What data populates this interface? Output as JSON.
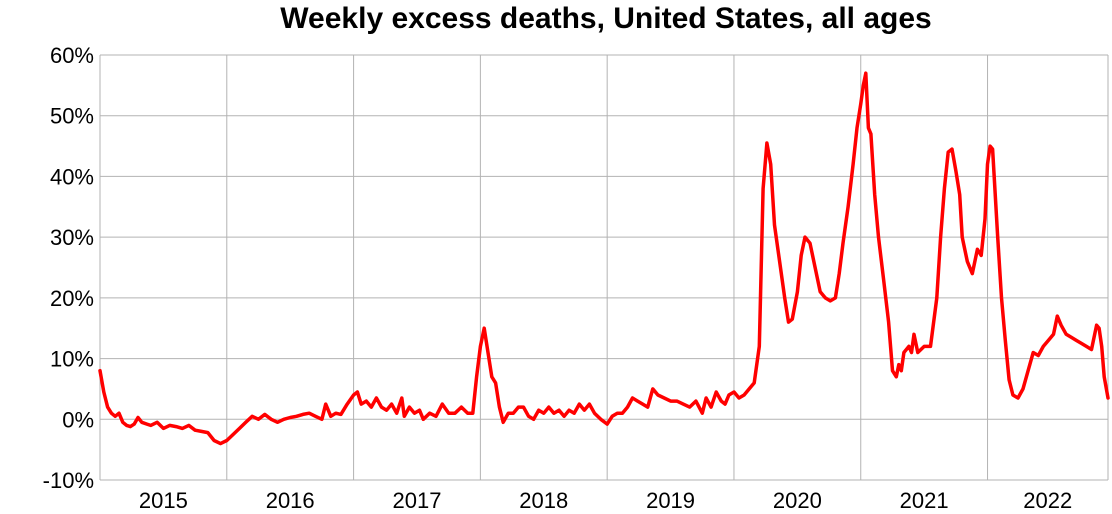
{
  "chart_data": {
    "type": "line",
    "title": "Weekly excess deaths, United States, all ages",
    "xlabel": "",
    "ylabel": "",
    "ylim": [
      -10,
      60
    ],
    "xlim": [
      2015.0,
      2022.95
    ],
    "y_tick_labels": [
      "-10%",
      "0%",
      "10%",
      "20%",
      "30%",
      "40%",
      "50%",
      "60%"
    ],
    "y_ticks": [
      -10,
      0,
      10,
      20,
      30,
      40,
      50,
      60
    ],
    "x_tick_labels": [
      "2015",
      "2016",
      "2017",
      "2018",
      "2019",
      "2020",
      "2021",
      "2022"
    ],
    "x_gridlines": [
      2016,
      2017,
      2018,
      2019,
      2020,
      2021,
      2022
    ],
    "grid": true,
    "line_color": "#ff0000",
    "series": [
      {
        "values": [
          [
            2015.0,
            8.0
          ],
          [
            2015.03,
            4.5
          ],
          [
            2015.06,
            2.0
          ],
          [
            2015.09,
            1.0
          ],
          [
            2015.12,
            0.5
          ],
          [
            2015.15,
            1.0
          ],
          [
            2015.18,
            -0.5
          ],
          [
            2015.21,
            -1.0
          ],
          [
            2015.24,
            -1.2
          ],
          [
            2015.27,
            -0.8
          ],
          [
            2015.3,
            0.3
          ],
          [
            2015.33,
            -0.5
          ],
          [
            2015.37,
            -0.8
          ],
          [
            2015.4,
            -1.0
          ],
          [
            2015.45,
            -0.5
          ],
          [
            2015.5,
            -1.5
          ],
          [
            2015.55,
            -1.0
          ],
          [
            2015.6,
            -1.2
          ],
          [
            2015.65,
            -1.5
          ],
          [
            2015.7,
            -1.0
          ],
          [
            2015.75,
            -1.8
          ],
          [
            2015.8,
            -2.0
          ],
          [
            2015.85,
            -2.2
          ],
          [
            2015.9,
            -3.5
          ],
          [
            2015.95,
            -4.0
          ],
          [
            2016.0,
            -3.5
          ],
          [
            2016.05,
            -2.5
          ],
          [
            2016.1,
            -1.5
          ],
          [
            2016.15,
            -0.5
          ],
          [
            2016.2,
            0.5
          ],
          [
            2016.25,
            0.0
          ],
          [
            2016.3,
            0.8
          ],
          [
            2016.35,
            0.0
          ],
          [
            2016.4,
            -0.5
          ],
          [
            2016.45,
            0.0
          ],
          [
            2016.5,
            0.3
          ],
          [
            2016.55,
            0.5
          ],
          [
            2016.6,
            0.8
          ],
          [
            2016.65,
            1.0
          ],
          [
            2016.7,
            0.5
          ],
          [
            2016.75,
            0.0
          ],
          [
            2016.78,
            2.5
          ],
          [
            2016.82,
            0.5
          ],
          [
            2016.86,
            1.0
          ],
          [
            2016.9,
            0.8
          ],
          [
            2016.95,
            2.5
          ],
          [
            2017.0,
            4.0
          ],
          [
            2017.03,
            4.5
          ],
          [
            2017.06,
            2.5
          ],
          [
            2017.1,
            3.0
          ],
          [
            2017.14,
            2.0
          ],
          [
            2017.18,
            3.5
          ],
          [
            2017.22,
            2.0
          ],
          [
            2017.26,
            1.5
          ],
          [
            2017.3,
            2.5
          ],
          [
            2017.34,
            1.0
          ],
          [
            2017.38,
            3.5
          ],
          [
            2017.4,
            0.5
          ],
          [
            2017.44,
            2.0
          ],
          [
            2017.48,
            1.0
          ],
          [
            2017.52,
            1.5
          ],
          [
            2017.55,
            0.0
          ],
          [
            2017.6,
            1.0
          ],
          [
            2017.65,
            0.5
          ],
          [
            2017.7,
            2.5
          ],
          [
            2017.75,
            1.0
          ],
          [
            2017.8,
            1.0
          ],
          [
            2017.85,
            2.0
          ],
          [
            2017.9,
            1.0
          ],
          [
            2017.94,
            1.0
          ],
          [
            2017.97,
            7.0
          ],
          [
            2018.0,
            12.0
          ],
          [
            2018.03,
            15.0
          ],
          [
            2018.06,
            11.0
          ],
          [
            2018.09,
            7.0
          ],
          [
            2018.12,
            6.0
          ],
          [
            2018.15,
            2.0
          ],
          [
            2018.18,
            -0.5
          ],
          [
            2018.22,
            1.0
          ],
          [
            2018.26,
            1.0
          ],
          [
            2018.3,
            2.0
          ],
          [
            2018.34,
            2.0
          ],
          [
            2018.38,
            0.5
          ],
          [
            2018.42,
            0.0
          ],
          [
            2018.46,
            1.5
          ],
          [
            2018.5,
            1.0
          ],
          [
            2018.54,
            2.0
          ],
          [
            2018.58,
            1.0
          ],
          [
            2018.62,
            1.5
          ],
          [
            2018.66,
            0.5
          ],
          [
            2018.7,
            1.5
          ],
          [
            2018.74,
            1.0
          ],
          [
            2018.78,
            2.5
          ],
          [
            2018.82,
            1.5
          ],
          [
            2018.86,
            2.5
          ],
          [
            2018.9,
            1.0
          ],
          [
            2018.95,
            0.0
          ],
          [
            2019.0,
            -0.8
          ],
          [
            2019.04,
            0.5
          ],
          [
            2019.08,
            1.0
          ],
          [
            2019.12,
            1.0
          ],
          [
            2019.16,
            2.0
          ],
          [
            2019.2,
            3.5
          ],
          [
            2019.24,
            3.0
          ],
          [
            2019.28,
            2.5
          ],
          [
            2019.32,
            2.0
          ],
          [
            2019.36,
            5.0
          ],
          [
            2019.4,
            4.0
          ],
          [
            2019.45,
            3.5
          ],
          [
            2019.5,
            3.0
          ],
          [
            2019.55,
            3.0
          ],
          [
            2019.6,
            2.5
          ],
          [
            2019.65,
            2.0
          ],
          [
            2019.7,
            3.0
          ],
          [
            2019.75,
            1.0
          ],
          [
            2019.78,
            3.5
          ],
          [
            2019.82,
            2.0
          ],
          [
            2019.86,
            4.5
          ],
          [
            2019.9,
            3.0
          ],
          [
            2019.93,
            2.5
          ],
          [
            2019.96,
            4.0
          ],
          [
            2020.0,
            4.5
          ],
          [
            2020.04,
            3.5
          ],
          [
            2020.08,
            4.0
          ],
          [
            2020.12,
            5.0
          ],
          [
            2020.16,
            6.0
          ],
          [
            2020.2,
            12.0
          ],
          [
            2020.23,
            38.0
          ],
          [
            2020.26,
            45.5
          ],
          [
            2020.29,
            42.0
          ],
          [
            2020.32,
            32.0
          ],
          [
            2020.36,
            26.0
          ],
          [
            2020.4,
            20.0
          ],
          [
            2020.43,
            16.0
          ],
          [
            2020.46,
            16.5
          ],
          [
            2020.5,
            21.0
          ],
          [
            2020.53,
            27.0
          ],
          [
            2020.56,
            30.0
          ],
          [
            2020.6,
            29.0
          ],
          [
            2020.64,
            25.0
          ],
          [
            2020.68,
            21.0
          ],
          [
            2020.72,
            20.0
          ],
          [
            2020.76,
            19.5
          ],
          [
            2020.8,
            20.0
          ],
          [
            2020.83,
            24.0
          ],
          [
            2020.86,
            29.0
          ],
          [
            2020.9,
            35.0
          ],
          [
            2020.94,
            42.0
          ],
          [
            2020.97,
            48.0
          ],
          [
            2021.0,
            52.0
          ],
          [
            2021.02,
            55.0
          ],
          [
            2021.04,
            57.0
          ],
          [
            2021.06,
            48.0
          ],
          [
            2021.08,
            47.0
          ],
          [
            2021.11,
            37.0
          ],
          [
            2021.14,
            30.0
          ],
          [
            2021.18,
            23.0
          ],
          [
            2021.22,
            16.0
          ],
          [
            2021.25,
            8.0
          ],
          [
            2021.28,
            7.0
          ],
          [
            2021.3,
            9.0
          ],
          [
            2021.32,
            8.0
          ],
          [
            2021.34,
            11.0
          ],
          [
            2021.38,
            12.0
          ],
          [
            2021.4,
            11.0
          ],
          [
            2021.42,
            14.0
          ],
          [
            2021.45,
            11.0
          ],
          [
            2021.5,
            12.0
          ],
          [
            2021.55,
            12.0
          ],
          [
            2021.6,
            20.0
          ],
          [
            2021.63,
            30.0
          ],
          [
            2021.66,
            38.0
          ],
          [
            2021.69,
            44.0
          ],
          [
            2021.72,
            44.5
          ],
          [
            2021.75,
            41.0
          ],
          [
            2021.78,
            37.0
          ],
          [
            2021.8,
            30.0
          ],
          [
            2021.84,
            26.0
          ],
          [
            2021.88,
            24.0
          ],
          [
            2021.92,
            28.0
          ],
          [
            2021.95,
            27.0
          ],
          [
            2021.98,
            33.0
          ],
          [
            2022.0,
            42.0
          ],
          [
            2022.02,
            45.0
          ],
          [
            2022.04,
            44.5
          ],
          [
            2022.08,
            30.0
          ],
          [
            2022.11,
            20.0
          ],
          [
            2022.14,
            13.0
          ],
          [
            2022.17,
            6.5
          ],
          [
            2022.2,
            4.0
          ],
          [
            2022.24,
            3.5
          ],
          [
            2022.28,
            5.0
          ],
          [
            2022.32,
            8.0
          ],
          [
            2022.36,
            11.0
          ],
          [
            2022.4,
            10.5
          ],
          [
            2022.44,
            12.0
          ],
          [
            2022.48,
            13.0
          ],
          [
            2022.52,
            14.0
          ],
          [
            2022.55,
            17.0
          ],
          [
            2022.58,
            15.5
          ],
          [
            2022.62,
            14.0
          ],
          [
            2022.66,
            13.5
          ],
          [
            2022.7,
            13.0
          ],
          [
            2022.74,
            12.5
          ],
          [
            2022.78,
            12.0
          ],
          [
            2022.82,
            11.5
          ],
          [
            2022.86,
            15.5
          ],
          [
            2022.88,
            15.0
          ],
          [
            2022.9,
            12.0
          ],
          [
            2022.92,
            7.0
          ],
          [
            2022.95,
            3.5
          ]
        ]
      }
    ]
  }
}
